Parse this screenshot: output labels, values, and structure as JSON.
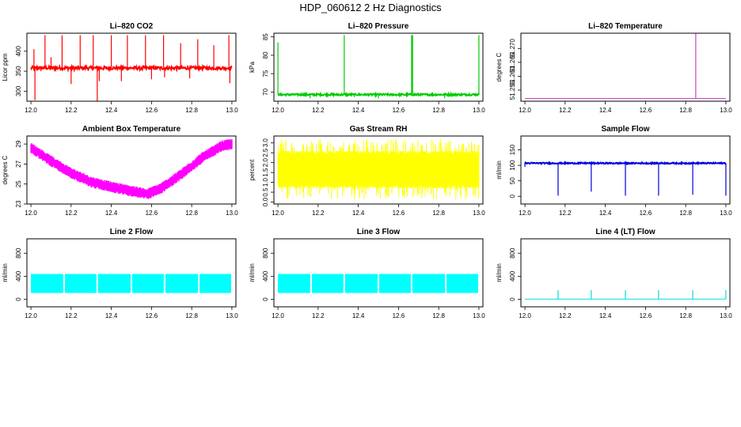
{
  "title": "HDP_060612  2 Hz Diagnostics",
  "chart_data": [
    {
      "type": "line",
      "title": "Li–820 CO2",
      "ylabel": "Licor ppm",
      "color": "#ff0000",
      "xlim": [
        11.98,
        13.02
      ],
      "ylim": [
        275,
        445
      ],
      "xticks": [
        "12.0",
        "12.2",
        "12.4",
        "12.6",
        "12.8",
        "13.0"
      ],
      "yticks": [
        "300",
        "350",
        "400"
      ],
      "series": [
        {
          "style": "noisy-spikes",
          "baseline": 358,
          "noise": 4,
          "spikes": [
            {
              "x": 12.015,
              "y": 405
            },
            {
              "x": 12.02,
              "y": 278
            },
            {
              "x": 12.07,
              "y": 440
            },
            {
              "x": 12.1,
              "y": 385
            },
            {
              "x": 12.155,
              "y": 440
            },
            {
              "x": 12.2,
              "y": 318
            },
            {
              "x": 12.245,
              "y": 440
            },
            {
              "x": 12.31,
              "y": 440
            },
            {
              "x": 12.33,
              "y": 275
            },
            {
              "x": 12.34,
              "y": 325
            },
            {
              "x": 12.4,
              "y": 440
            },
            {
              "x": 12.45,
              "y": 325
            },
            {
              "x": 12.48,
              "y": 440
            },
            {
              "x": 12.57,
              "y": 440
            },
            {
              "x": 12.6,
              "y": 330
            },
            {
              "x": 12.66,
              "y": 440
            },
            {
              "x": 12.665,
              "y": 335
            },
            {
              "x": 12.745,
              "y": 420
            },
            {
              "x": 12.79,
              "y": 332
            },
            {
              "x": 12.83,
              "y": 430
            },
            {
              "x": 12.91,
              "y": 415
            },
            {
              "x": 12.985,
              "y": 440
            },
            {
              "x": 12.99,
              "y": 320
            }
          ]
        }
      ]
    },
    {
      "type": "line",
      "title": "Li–820 Pressure",
      "ylabel": "kPa",
      "color": "#00cc00",
      "xlim": [
        11.98,
        13.02
      ],
      "ylim": [
        67.5,
        86
      ],
      "xticks": [
        "12.0",
        "12.2",
        "12.4",
        "12.6",
        "12.8",
        "13.0"
      ],
      "yticks": [
        "70",
        "75",
        "80",
        "85"
      ],
      "series": [
        {
          "style": "noisy-spikes",
          "baseline": 69.3,
          "noise": 0.25,
          "spikes": [
            {
              "x": 12.0,
              "y": 83.5
            },
            {
              "x": 12.16,
              "y": 68.3
            },
            {
              "x": 12.33,
              "y": 85.5
            },
            {
              "x": 12.5,
              "y": 68.3
            },
            {
              "x": 12.665,
              "y": 85.5
            },
            {
              "x": 12.67,
              "y": 85.5
            },
            {
              "x": 12.83,
              "y": 68.3
            },
            {
              "x": 13.0,
              "y": 85.5
            }
          ]
        }
      ]
    },
    {
      "type": "line",
      "title": "Li–820 Temperature",
      "ylabel": "degrees C",
      "color": "#cc44cc",
      "xlim": [
        11.98,
        13.02
      ],
      "ylim": [
        51.251,
        51.2755
      ],
      "xticks": [
        "12.0",
        "12.2",
        "12.4",
        "12.6",
        "12.8",
        "13.0"
      ],
      "yticks": [
        "51.255",
        "51.260",
        "51.265",
        "51.270"
      ],
      "series": [
        {
          "style": "flat-spikes",
          "baseline": 51.252,
          "noise": 0,
          "spikes": [
            {
              "x": 12.85,
              "y": 51.2755
            }
          ]
        }
      ]
    },
    {
      "type": "line",
      "title": "Ambient Box Temperature",
      "ylabel": "degrees C",
      "color": "#ff00ff",
      "xlim": [
        11.98,
        13.02
      ],
      "ylim": [
        23,
        29.8
      ],
      "xticks": [
        "12.0",
        "12.2",
        "12.4",
        "12.6",
        "12.8",
        "13.0"
      ],
      "yticks": [
        "23",
        "25",
        "27",
        "29"
      ],
      "series": [
        {
          "style": "band",
          "x": [
            12.0,
            12.1,
            12.2,
            12.3,
            12.4,
            12.5,
            12.58,
            12.65,
            12.75,
            12.85,
            12.95,
            13.0
          ],
          "y": [
            28.6,
            27.3,
            26.1,
            25.2,
            24.7,
            24.3,
            24.0,
            24.6,
            26.0,
            27.6,
            28.8,
            29.0
          ],
          "noise": 0.55
        }
      ]
    },
    {
      "type": "line",
      "title": "Gas Stream RH",
      "ylabel": "percent",
      "color": "#ffff00",
      "xlim": [
        11.98,
        13.02
      ],
      "ylim": [
        -0.1,
        3.35
      ],
      "xticks": [
        "12.0",
        "12.2",
        "12.4",
        "12.6",
        "12.8",
        "13.0"
      ],
      "yticks": [
        "0.0",
        "0.5",
        "1.0",
        "1.5",
        "2.0",
        "2.5",
        "3.0"
      ],
      "series": [
        {
          "style": "dense-noise",
          "center": 1.6,
          "low": 0.8,
          "high": 2.5,
          "min": 0.1,
          "max": 3.2
        }
      ]
    },
    {
      "type": "line",
      "title": "Sample Flow",
      "ylabel": "ml/min",
      "color": "#0000dd",
      "xlim": [
        11.98,
        13.02
      ],
      "ylim": [
        -25,
        195
      ],
      "xticks": [
        "12.0",
        "12.2",
        "12.4",
        "12.6",
        "12.8",
        "13.0"
      ],
      "yticks": [
        "0",
        "50",
        "100",
        "150"
      ],
      "series": [
        {
          "style": "noisy-spikes",
          "baseline": 107,
          "noise": 2,
          "spikes": [
            {
              "x": 12.0,
              "y": 95
            },
            {
              "x": 12.165,
              "y": 2
            },
            {
              "x": 12.33,
              "y": 15
            },
            {
              "x": 12.5,
              "y": 2
            },
            {
              "x": 12.665,
              "y": 2
            },
            {
              "x": 12.835,
              "y": 5
            },
            {
              "x": 13.0,
              "y": 2
            }
          ]
        }
      ]
    },
    {
      "type": "line",
      "title": "Line 2 Flow",
      "ylabel": "ml/min",
      "color": "#00ffff",
      "xlim": [
        11.98,
        13.02
      ],
      "ylim": [
        -130,
        1050
      ],
      "xticks": [
        "12.0",
        "12.2",
        "12.4",
        "12.6",
        "12.8",
        "13.0"
      ],
      "yticks": [
        "0",
        "400",
        "800"
      ],
      "series": [
        {
          "style": "block-band",
          "low": 110,
          "high": 440,
          "gaps": [
            12.165,
            12.33,
            12.5,
            12.665,
            12.835
          ]
        }
      ]
    },
    {
      "type": "line",
      "title": "Line 3 Flow",
      "ylabel": "ml/min",
      "color": "#00ffff",
      "xlim": [
        11.98,
        13.02
      ],
      "ylim": [
        -130,
        1050
      ],
      "xticks": [
        "12.0",
        "12.2",
        "12.4",
        "12.6",
        "12.8",
        "13.0"
      ],
      "yticks": [
        "0",
        "400",
        "800"
      ],
      "series": [
        {
          "style": "block-band",
          "low": 110,
          "high": 440,
          "gaps": [
            12.165,
            12.33,
            12.5,
            12.665,
            12.835
          ]
        }
      ]
    },
    {
      "type": "line",
      "title": "Line 4 (LT) Flow",
      "ylabel": "ml/min",
      "color": "#00dddd",
      "xlim": [
        11.98,
        13.02
      ],
      "ylim": [
        -130,
        1050
      ],
      "xticks": [
        "12.0",
        "12.2",
        "12.4",
        "12.6",
        "12.8",
        "13.0"
      ],
      "yticks": [
        "0",
        "400",
        "800"
      ],
      "series": [
        {
          "style": "flat-spikes",
          "baseline": 5,
          "noise": 0,
          "spikes": [
            {
              "x": 12.165,
              "y": 160
            },
            {
              "x": 12.33,
              "y": 160
            },
            {
              "x": 12.5,
              "y": 160
            },
            {
              "x": 12.665,
              "y": 160
            },
            {
              "x": 12.835,
              "y": 160
            },
            {
              "x": 13.0,
              "y": 160
            }
          ]
        }
      ]
    }
  ]
}
